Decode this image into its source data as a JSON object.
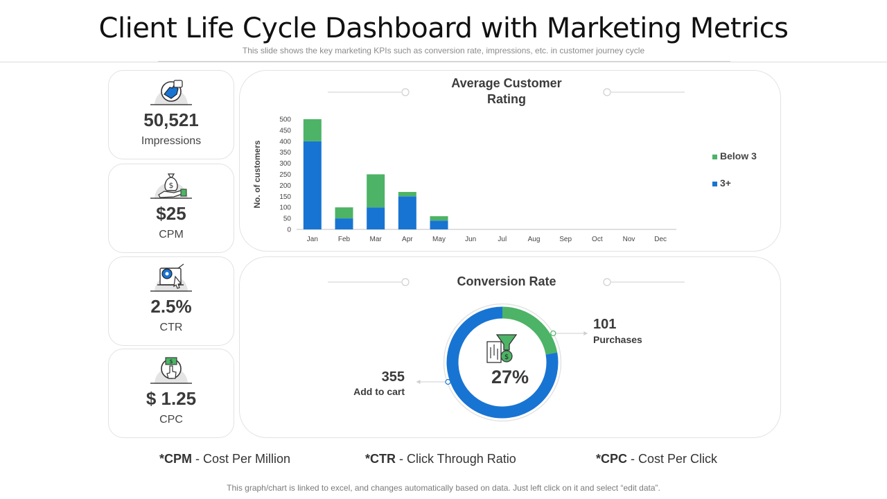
{
  "header": {
    "title": "Client Life Cycle Dashboard with Marketing Metrics",
    "subtitle": "This slide shows the key marketing KPIs such as conversion  rate, impressions,  etc. in customer journey cycle"
  },
  "kpis": [
    {
      "value": "50,521",
      "label": "Impressions",
      "icon": "thumbs-up-icon"
    },
    {
      "value": "$25",
      "label": "CPM",
      "icon": "money-bag-hand-icon"
    },
    {
      "value": "2.5%",
      "label": "CTR",
      "icon": "target-click-icon"
    },
    {
      "value": "$ 1.25",
      "label": "CPC",
      "icon": "dollar-click-icon"
    }
  ],
  "bar_panel": {
    "title_line1": "Average Customer",
    "title_line2": "Rating"
  },
  "conversion_panel": {
    "title": "Conversion Rate",
    "center_value": "27%",
    "purchases_value": "101",
    "purchases_label": "Purchases",
    "cart_value": "355",
    "cart_label": "Add to cart"
  },
  "chart_data": [
    {
      "type": "bar",
      "stacked": true,
      "title": "Average Customer Rating",
      "xlabel": "",
      "ylabel": "No. of customers",
      "ylim": [
        0,
        500
      ],
      "yticks": [
        0,
        50,
        100,
        150,
        200,
        250,
        300,
        350,
        400,
        450,
        500
      ],
      "categories": [
        "Jan",
        "Feb",
        "Mar",
        "Apr",
        "May",
        "Jun",
        "Jul",
        "Aug",
        "Sep",
        "Oct",
        "Nov",
        "Dec"
      ],
      "series": [
        {
          "name": "3+",
          "color": "#1874d2",
          "values": [
            400,
            50,
            100,
            150,
            40,
            0,
            0,
            0,
            0,
            0,
            0,
            0
          ]
        },
        {
          "name": "Below 3",
          "color": "#4db366",
          "values": [
            100,
            50,
            150,
            20,
            20,
            0,
            0,
            0,
            0,
            0,
            0,
            0
          ]
        }
      ],
      "legend": [
        "Below 3",
        "3+"
      ],
      "legend_position": "right"
    },
    {
      "type": "pie",
      "donut": true,
      "title": "Conversion Rate",
      "labels": [
        "Purchases",
        "Add to cart"
      ],
      "values": [
        101,
        355
      ],
      "colors": [
        "#4db366",
        "#1874d2"
      ]
    }
  ],
  "abbreviations": [
    {
      "key": "*CPM",
      "text": " - Cost Per Million"
    },
    {
      "key": "*CTR",
      "text": " - Click Through Ratio"
    },
    {
      "key": "*CPC",
      "text": " - Cost Per Click"
    }
  ],
  "footer": "This graph/chart is linked to excel, and changes automatically based on data. Just left click on it and select “edit data”."
}
